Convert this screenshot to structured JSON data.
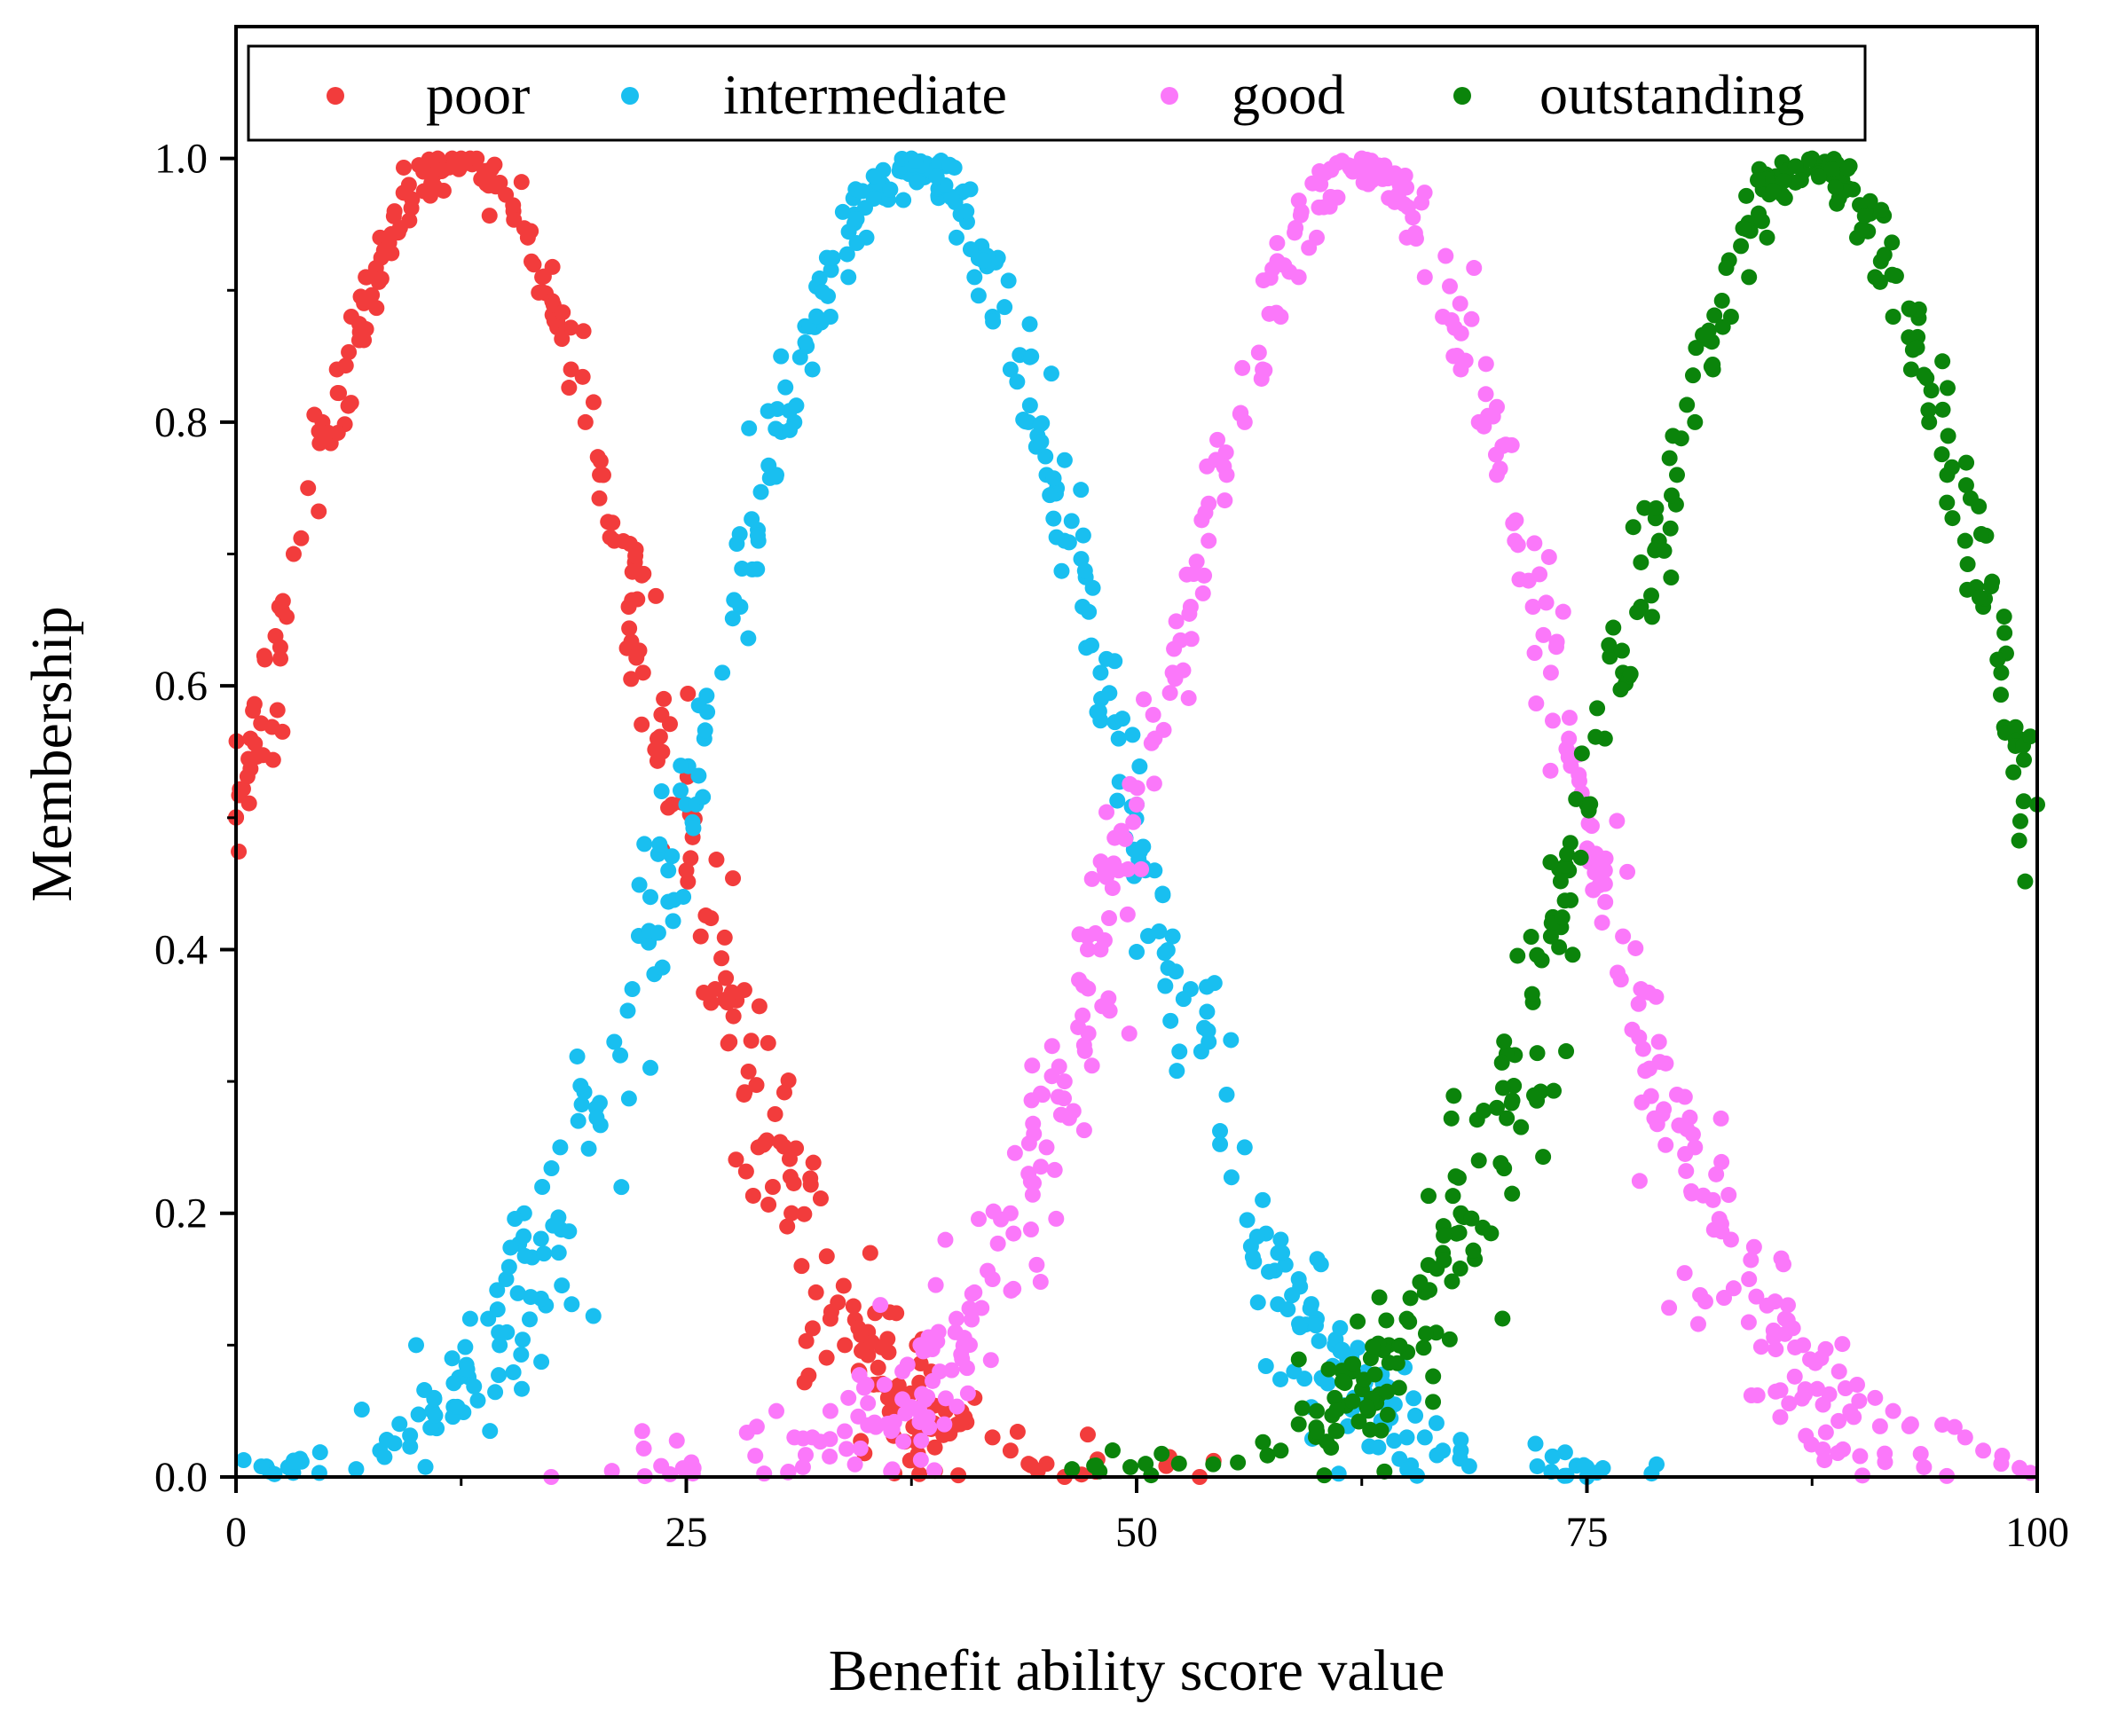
{
  "chart_data": {
    "type": "scatter",
    "title": "",
    "xlabel": "Benefit ability score value",
    "ylabel": "Membership",
    "xlim": [
      0,
      100
    ],
    "ylim": [
      0,
      1.1
    ],
    "xticks": [
      0,
      25,
      50,
      75,
      100
    ],
    "xtick_labels": [
      "0",
      "25",
      "50",
      "75",
      "100"
    ],
    "yticks": [
      0,
      0.2,
      0.4,
      0.6,
      0.8,
      1.0
    ],
    "ytick_labels": [
      "0.0",
      "0.2",
      "0.4",
      "0.6",
      "0.8",
      "1.0"
    ],
    "grid": false,
    "legend_position": "top",
    "series": [
      {
        "name": "poor",
        "color": "#f23c3c",
        "center": 12.5,
        "sigma": 10.6,
        "x": [
          0,
          0.8,
          1.6,
          2.4,
          3.2,
          4,
          4.8,
          5.6,
          6.4,
          7.2,
          8,
          8.8,
          9.6,
          10.4,
          11.2,
          12,
          12.5,
          13,
          13.8,
          14.6,
          15.4,
          16.2,
          17,
          17.8,
          18.6,
          19.4,
          20.2,
          21,
          21.8,
          22.6,
          23.4,
          24.2,
          25,
          25.8,
          26.6,
          27.4,
          28.2,
          29,
          29.8,
          30.6,
          31.4,
          32.2,
          33,
          33.8,
          34.6,
          35.4,
          36.2,
          37,
          37.8,
          38.6,
          39.4,
          40.2,
          41,
          42,
          43,
          44,
          45,
          46,
          53.5
        ],
        "y": [
          0.5,
          0.56,
          0.62,
          0.66,
          0.7,
          0.75,
          0.8,
          0.84,
          0.88,
          0.91,
          0.94,
          0.96,
          0.98,
          0.99,
          1.0,
          1.0,
          1.0,
          1.0,
          0.99,
          0.98,
          0.96,
          0.94,
          0.91,
          0.88,
          0.84,
          0.8,
          0.76,
          0.71,
          0.66,
          0.61,
          0.56,
          0.51,
          0.46,
          0.41,
          0.37,
          0.33,
          0.29,
          0.25,
          0.22,
          0.19,
          0.16,
          0.14,
          0.12,
          0.1,
          0.08,
          0.07,
          0.06,
          0.05,
          0.1,
          0.08,
          0.05,
          0.04,
          0.06,
          0.03,
          0.02,
          0.01,
          0.01,
          0.0,
          0.0
        ]
      },
      {
        "name": "intermediate",
        "color": "#19bff0",
        "center": 37.5,
        "sigma": 10.6,
        "x": [
          8,
          10,
          11,
          12,
          13,
          14,
          15,
          16,
          17,
          18,
          19,
          20,
          21,
          22,
          23,
          24,
          25,
          26,
          27,
          28,
          29,
          30,
          31,
          32,
          33,
          34,
          35,
          36,
          37,
          37.5,
          38,
          39,
          40,
          41,
          42,
          43,
          44,
          45,
          46,
          47,
          48,
          49,
          50,
          51,
          52,
          53,
          54,
          55,
          56,
          57,
          58,
          59,
          60,
          61,
          62,
          63,
          64,
          65,
          66,
          67,
          68,
          75
        ],
        "y": [
          0.02,
          0.1,
          0.06,
          0.09,
          0.12,
          0.12,
          0.15,
          0.2,
          0.22,
          0.25,
          0.27,
          0.28,
          0.33,
          0.37,
          0.41,
          0.46,
          0.51,
          0.56,
          0.61,
          0.66,
          0.71,
          0.76,
          0.8,
          0.84,
          0.88,
          0.91,
          0.94,
          0.97,
          0.99,
          1.0,
          0.99,
          0.97,
          0.94,
          0.91,
          0.88,
          0.84,
          0.8,
          0.76,
          0.71,
          0.66,
          0.61,
          0.56,
          0.51,
          0.46,
          0.41,
          0.37,
          0.33,
          0.29,
          0.25,
          0.21,
          0.18,
          0.15,
          0.12,
          0.1,
          0.08,
          0.06,
          0.05,
          0.03,
          0.03,
          0.02,
          0.02,
          0.0
        ]
      },
      {
        "name": "good",
        "color": "#fb78fa",
        "center": 62.5,
        "sigma": 10.6,
        "x": [
          17.5,
          30,
          31,
          32,
          33,
          34,
          35,
          36,
          37,
          38,
          39,
          40,
          41,
          42,
          43,
          44,
          45,
          46,
          47,
          48,
          49,
          50,
          51,
          52,
          53,
          54,
          55,
          56,
          57,
          58,
          59,
          60,
          61,
          62,
          62.5,
          63,
          64,
          65,
          66,
          67,
          68,
          69,
          70,
          71,
          72,
          73,
          74,
          75,
          76,
          77,
          78,
          79,
          80,
          81,
          82,
          83,
          84,
          85,
          86,
          87,
          88,
          89,
          90,
          91,
          92,
          93,
          96,
          97,
          98
        ],
        "y": [
          0.0,
          0.05,
          0.03,
          0.03,
          0.05,
          0.06,
          0.07,
          0.07,
          0.08,
          0.1,
          0.11,
          0.12,
          0.14,
          0.15,
          0.2,
          0.23,
          0.25,
          0.3,
          0.35,
          0.4,
          0.46,
          0.51,
          0.56,
          0.61,
          0.66,
          0.71,
          0.76,
          0.8,
          0.84,
          0.88,
          0.91,
          0.94,
          0.97,
          0.99,
          1.0,
          0.99,
          0.97,
          0.94,
          0.91,
          0.88,
          0.84,
          0.8,
          0.76,
          0.71,
          0.66,
          0.61,
          0.56,
          0.51,
          0.46,
          0.41,
          0.37,
          0.33,
          0.29,
          0.25,
          0.21,
          0.18,
          0.15,
          0.13,
          0.12,
          0.1,
          0.09,
          0.08,
          0.07,
          0.06,
          0.05,
          0.04,
          0.03,
          0.02,
          0.01
        ]
      },
      {
        "name": "outstanding",
        "color": "#0b840b",
        "center": 87.5,
        "sigma": 10.6,
        "x": [
          50.5,
          58,
          59,
          60,
          61,
          62,
          63,
          64,
          65,
          66,
          67,
          68,
          69,
          70,
          71,
          72,
          73,
          74,
          75,
          76,
          77,
          78,
          79,
          80,
          81,
          82,
          83,
          84,
          85,
          86,
          87,
          87.5,
          88,
          89,
          90,
          91,
          92,
          93,
          94,
          95,
          96,
          97,
          98,
          99,
          100
        ],
        "y": [
          0.01,
          0.02,
          0.04,
          0.05,
          0.06,
          0.08,
          0.09,
          0.1,
          0.12,
          0.14,
          0.17,
          0.2,
          0.24,
          0.28,
          0.32,
          0.36,
          0.41,
          0.46,
          0.51,
          0.56,
          0.61,
          0.66,
          0.71,
          0.76,
          0.8,
          0.84,
          0.88,
          0.91,
          0.94,
          0.97,
          0.99,
          1.0,
          0.99,
          0.97,
          0.94,
          0.91,
          0.88,
          0.84,
          0.8,
          0.76,
          0.71,
          0.66,
          0.61,
          0.56,
          0.51
        ]
      }
    ]
  }
}
